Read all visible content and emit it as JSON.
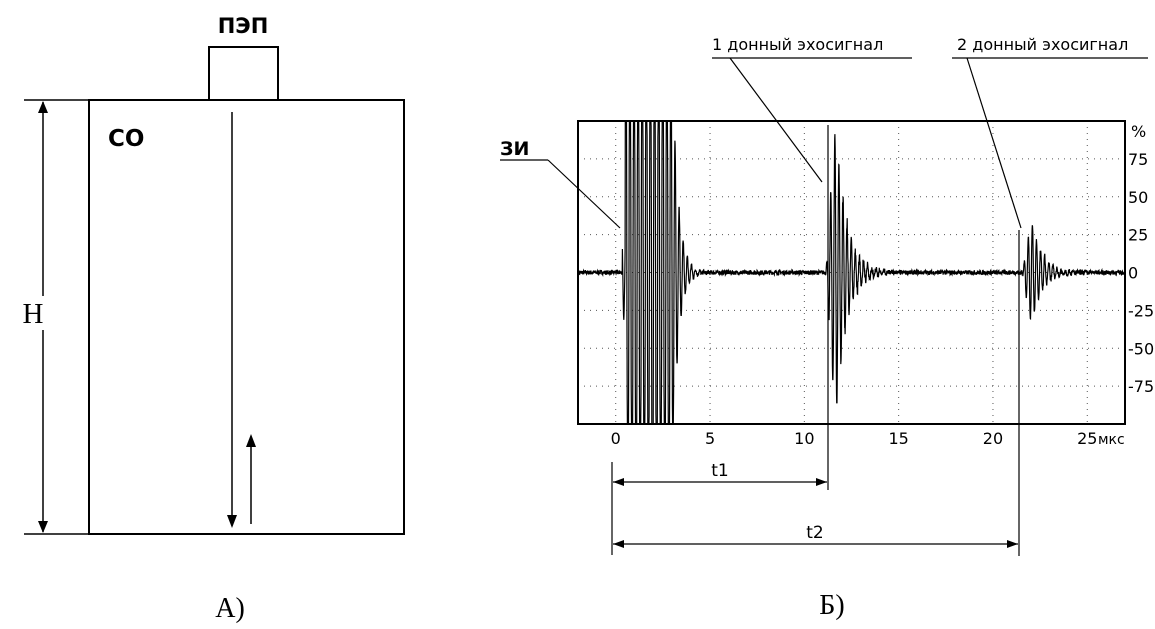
{
  "colors": {
    "ink": "#000000",
    "background": "#ffffff",
    "grid": "#555555"
  },
  "panel_a": {
    "probe_label": "ПЭП",
    "sample_label": "СО",
    "height_label": "Н",
    "caption": "А)"
  },
  "panel_b": {
    "caption": "Б)",
    "labels": {
      "zi": "ЗИ",
      "echo1": "1 донный эхосигнал",
      "echo2": "2 донный эхосигнал",
      "t1": "t1",
      "t2": "t2"
    },
    "y_unit": "%",
    "x_unit": "мкс"
  },
  "chart_data": {
    "type": "line",
    "title": "",
    "xlabel": "мкс",
    "ylabel": "%",
    "xlim": [
      -2,
      27
    ],
    "ylim": [
      -100,
      100
    ],
    "x_ticks": [
      0,
      5,
      10,
      15,
      20,
      25
    ],
    "y_ticks": [
      75,
      50,
      25,
      0,
      -25,
      -50,
      -75
    ],
    "x_tick_labels": [
      "0",
      "5",
      "10",
      "15",
      "20",
      "25"
    ],
    "y_tick_labels": [
      "75",
      "50",
      "25",
      "0",
      "-25",
      "-50",
      "-75"
    ],
    "grid": true,
    "bursts": [
      {
        "label": "ЗИ",
        "t": 0.5,
        "amplitude": 100,
        "saturated": true
      },
      {
        "label": "1 донный эхосигнал",
        "t": 11.3,
        "amplitude": 100,
        "saturated": false
      },
      {
        "label": "2 донный эхосигнал",
        "t": 21.7,
        "amplitude": 35,
        "saturated": false
      }
    ],
    "intervals": [
      {
        "label": "t1",
        "start": 0,
        "end": 11.3
      },
      {
        "label": "t2",
        "start": 0,
        "end": 21.7
      }
    ]
  }
}
